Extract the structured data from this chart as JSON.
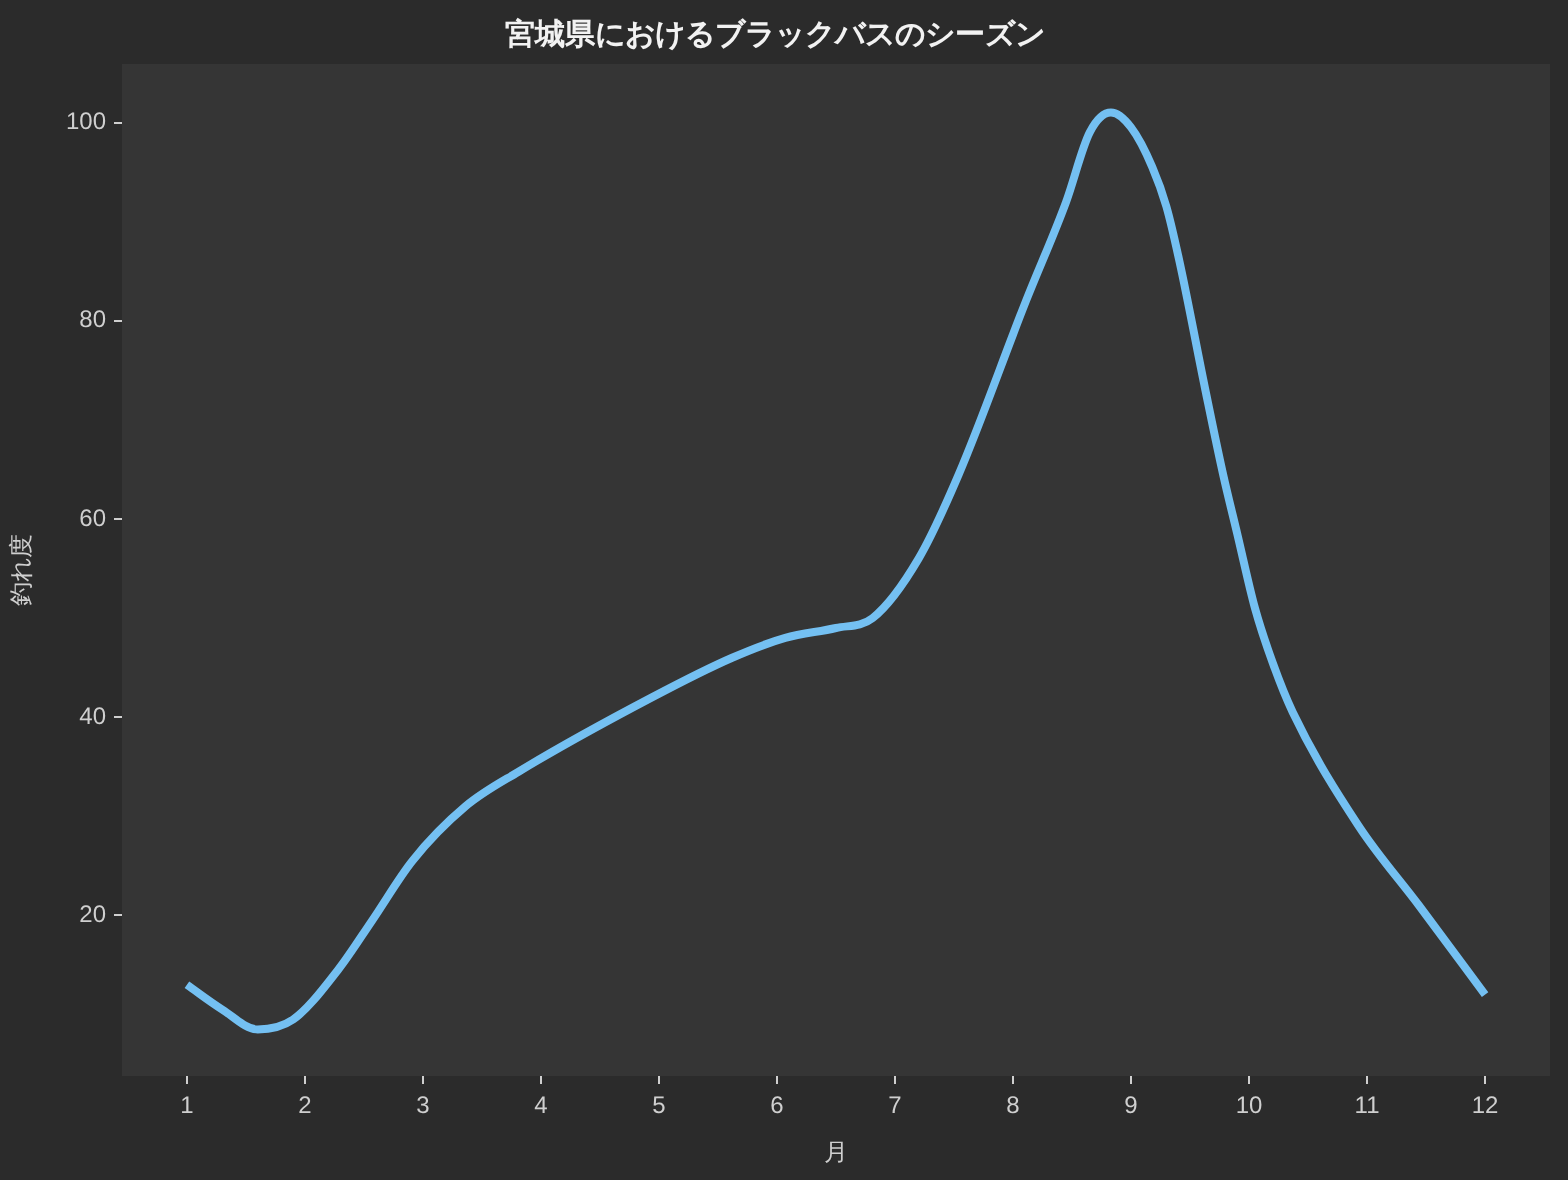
{
  "chart_data": {
    "type": "line",
    "title": "宮城県におけるブラックバスのシーズン",
    "xlabel": "月",
    "ylabel": "釣れ度",
    "x": [
      1,
      1.3,
      1.6,
      1.9,
      2.28,
      2.57,
      2.91,
      3.36,
      3.81,
      4.94,
      5.62,
      6.07,
      6.5,
      6.81,
      7.2,
      7.54,
      8.11,
      8.45,
      8.65,
      8.83,
      9,
      9.18,
      9.3,
      9.41,
      9.63,
      9.78,
      9.9,
      10.05,
      10.2,
      10.37,
      10.93,
      11.44,
      12
    ],
    "series": [
      {
        "color": "#74c0f2",
        "values": [
          13,
          10.5,
          8.5,
          9.5,
          14.5,
          19.5,
          25.5,
          31,
          34.5,
          42,
          46,
          48,
          49,
          50,
          56,
          64.5,
          82,
          92,
          99,
          101,
          99.5,
          95.5,
          91.5,
          86,
          73,
          64.5,
          58.5,
          51,
          45.5,
          40.5,
          29,
          21,
          12
        ]
      }
    ],
    "xlim": [
      0.45,
      12.55
    ],
    "ylim": [
      3.8,
      105.9
    ],
    "xticks": [
      1,
      2,
      3,
      4,
      5,
      6,
      7,
      8,
      9,
      10,
      11,
      12
    ],
    "yticks": [
      20,
      40,
      60,
      80,
      100
    ]
  }
}
